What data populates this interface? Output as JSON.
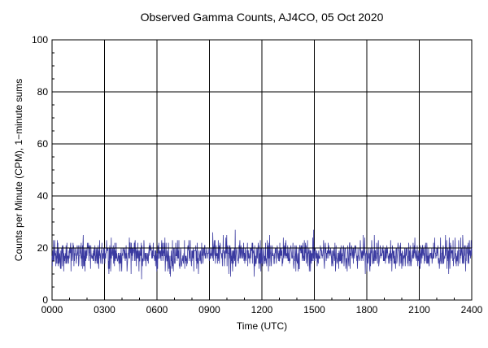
{
  "chart_data": {
    "type": "line",
    "title": "Observed Gamma Counts, AJ4CO, 05 Oct 2020",
    "xlabel": "Time (UTC)",
    "ylabel": "Counts per Minute (CPM), 1−minute sums",
    "x_range": [
      0,
      1440
    ],
    "ylim": [
      0,
      100
    ],
    "x_tick_labels": [
      "0000",
      "0300",
      "0600",
      "0900",
      "1200",
      "1500",
      "1800",
      "2100",
      "2400"
    ],
    "y_tick_labels": [
      "0",
      "20",
      "40",
      "60",
      "80",
      "100"
    ],
    "y_tick_values": [
      0,
      20,
      40,
      60,
      80,
      100
    ],
    "grid": true,
    "reference_line": 20,
    "series": [
      {
        "color": "#3a3aa0",
        "interval_minutes": 1,
        "mean": 17.5,
        "min": 7,
        "max": 32,
        "points": 1440
      }
    ]
  }
}
